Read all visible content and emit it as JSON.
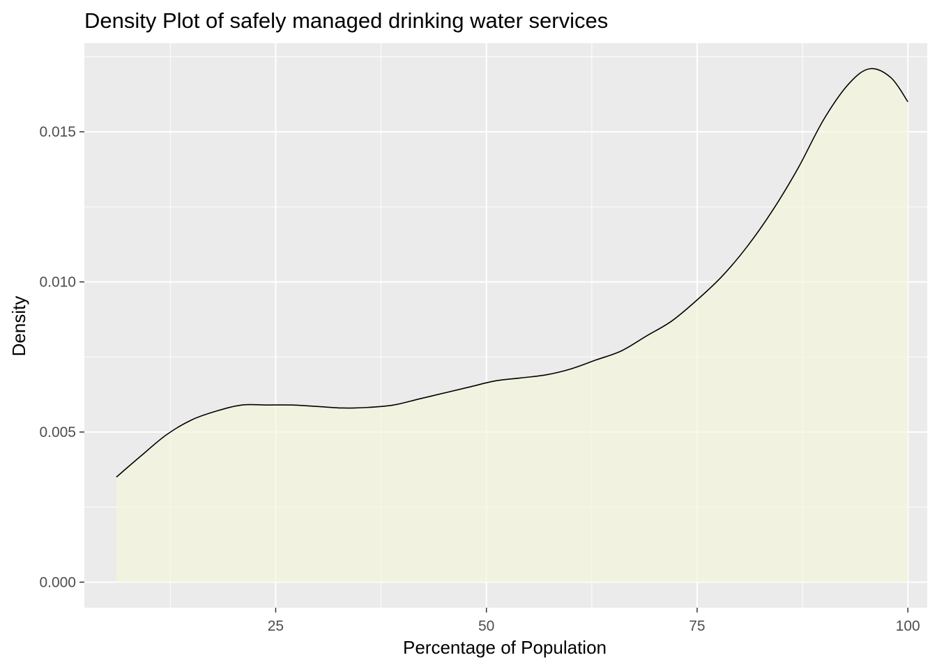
{
  "chart_data": {
    "type": "area",
    "title": "Density Plot of safely managed drinking water services",
    "xlabel": "Percentage of Population",
    "ylabel": "Density",
    "xlim": [
      2.3,
      102.3
    ],
    "ylim": [
      -0.00085,
      0.01795
    ],
    "x_ticks": [
      25,
      50,
      75,
      100
    ],
    "x_tick_labels": [
      "25",
      "50",
      "75",
      "100"
    ],
    "x_minor_ticks": [
      12.5,
      37.5,
      62.5,
      87.5
    ],
    "y_ticks": [
      0.0,
      0.005,
      0.01,
      0.015
    ],
    "y_tick_labels": [
      "0.000",
      "0.005",
      "0.010",
      "0.015"
    ],
    "y_minor_ticks": [
      0.0025,
      0.0075,
      0.0125,
      0.0175
    ],
    "grid": true,
    "colors": {
      "panel_background": "#ebebeb",
      "grid_line": "#ffffff",
      "fill": "#f5f5dc",
      "fill_opacity": 0.7,
      "line": "#000000"
    },
    "series": [
      {
        "x": [
          6.1,
          9,
          12,
          15,
          18,
          21,
          24,
          27,
          30,
          33,
          36,
          39,
          42,
          45,
          48,
          51,
          54,
          57,
          60,
          63,
          66,
          69,
          72,
          75,
          78,
          81,
          84,
          87,
          90,
          93,
          95.5,
          98,
          100
        ],
        "y": [
          0.0035,
          0.0042,
          0.0049,
          0.0054,
          0.0057,
          0.0059,
          0.0059,
          0.0059,
          0.00585,
          0.0058,
          0.00582,
          0.0059,
          0.0061,
          0.0063,
          0.0065,
          0.0067,
          0.0068,
          0.0069,
          0.0071,
          0.0074,
          0.0077,
          0.0082,
          0.0087,
          0.0094,
          0.0102,
          0.0112,
          0.0124,
          0.0138,
          0.0154,
          0.0166,
          0.0171,
          0.0168,
          0.016
        ]
      }
    ]
  }
}
